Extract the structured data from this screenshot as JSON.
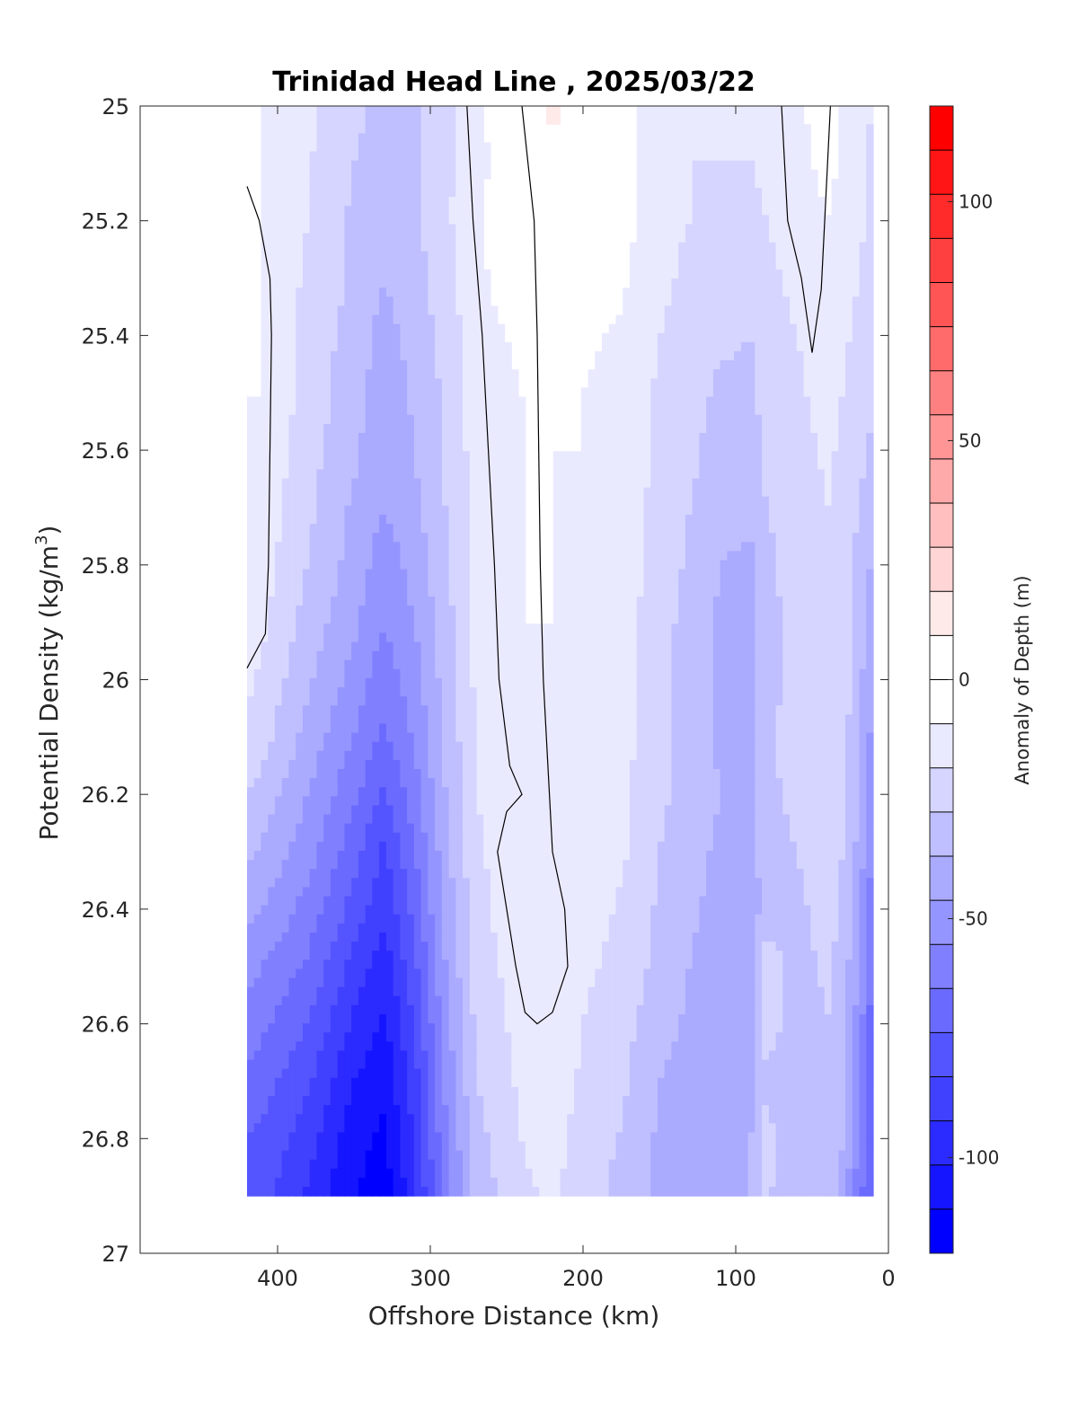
{
  "chart_data": {
    "type": "heatmap",
    "subtype": "filled-contour",
    "title": "Trinidad Head Line , 2025/03/22",
    "xlabel": "Offshore Distance (km)",
    "ylabel_main": "Potential Density (kg/m",
    "ylabel_sup": "3",
    "ylabel_close": ")",
    "xlim": [
      490,
      0
    ],
    "x_reversed": true,
    "ylim": [
      25,
      27
    ],
    "y_reversed": true,
    "x_ticks": [
      400,
      300,
      200,
      100,
      0
    ],
    "x_tick_labels": [
      "400",
      "300",
      "200",
      "100",
      "0"
    ],
    "y_ticks": [
      25,
      25.2,
      25.4,
      25.6,
      25.8,
      26,
      26.2,
      26.4,
      26.6,
      26.8,
      27
    ],
    "y_tick_labels": [
      "25",
      "25.2",
      "25.4",
      "25.6",
      "25.8",
      "26",
      "26.2",
      "26.4",
      "26.6",
      "26.8",
      "27"
    ],
    "colorbar": {
      "label": "Anomaly of Depth (m)",
      "range": [
        -120,
        120
      ],
      "level_step": 10,
      "ticks": [
        100,
        50,
        0,
        -50,
        -100
      ],
      "tick_labels": [
        "100",
        "50",
        "0",
        "-50",
        "-100"
      ],
      "colors": [
        "#0000ff",
        "#1515ff",
        "#2b2bff",
        "#4040ff",
        "#5555ff",
        "#6a6aff",
        "#8080ff",
        "#9595ff",
        "#aaaaff",
        "#bfbfff",
        "#d5d5ff",
        "#eaeaff",
        "#ffffff",
        "#ffffff",
        "#ffeaea",
        "#ffd5d5",
        "#ffbfbf",
        "#ffaaaa",
        "#ff9595",
        "#ff8080",
        "#ff6a6a",
        "#ff5555",
        "#ff4040",
        "#ff2b2b",
        "#ff1515",
        "#ff0000"
      ]
    },
    "stations_km": [
      420,
      410,
      380,
      350,
      330,
      310,
      290,
      270,
      240,
      220,
      200,
      170,
      150,
      130,
      110,
      90,
      80,
      60,
      40,
      30,
      20,
      10
    ],
    "density_levels": [
      25,
      25.1,
      25.2,
      25.3,
      25.4,
      25.5,
      25.6,
      25.7,
      25.8,
      25.9,
      26,
      26.1,
      26.2,
      26.3,
      26.4,
      26.5,
      26.6,
      26.7,
      26.8,
      26.9
    ],
    "anomaly_m": [
      [
        0,
        0,
        -8,
        -18,
        -22,
        -22,
        -12,
        -4,
        14,
        22,
        14,
        2,
        -6,
        -8,
        -10,
        -8,
        -6,
        -2,
        6,
        -2,
        -8,
        -10
      ],
      [
        0,
        0,
        -9,
        -20,
        -24,
        -22,
        -12,
        -4,
        12,
        18,
        12,
        2,
        -6,
        -10,
        -10,
        -10,
        -8,
        -4,
        4,
        -2,
        -8,
        -12
      ],
      [
        0,
        0,
        -10,
        -22,
        -26,
        -22,
        -12,
        -2,
        8,
        16,
        12,
        2,
        -8,
        -10,
        -12,
        -12,
        -10,
        -6,
        0,
        -4,
        -8,
        -12
      ],
      [
        0,
        0,
        -12,
        -22,
        -30,
        -24,
        -14,
        -2,
        6,
        12,
        8,
        0,
        -8,
        -12,
        -14,
        -14,
        -12,
        -8,
        -2,
        -6,
        -10,
        -14
      ],
      [
        0,
        0,
        -14,
        -24,
        -34,
        -26,
        -16,
        -4,
        2,
        6,
        2,
        -2,
        -10,
        -14,
        -18,
        -20,
        -14,
        -10,
        -4,
        -8,
        -12,
        -18
      ],
      [
        0,
        0,
        -14,
        -26,
        -36,
        -28,
        -18,
        -6,
        0,
        2,
        0,
        -4,
        -12,
        -16,
        -22,
        -22,
        -16,
        -12,
        -6,
        -10,
        -14,
        -20
      ],
      [
        0,
        -2,
        -16,
        -28,
        -38,
        -30,
        -18,
        -6,
        0,
        0,
        0,
        -4,
        -12,
        -18,
        -24,
        -24,
        -18,
        -14,
        -8,
        -12,
        -16,
        -22
      ],
      [
        0,
        -4,
        -18,
        -32,
        -40,
        -32,
        -20,
        -8,
        0,
        0,
        -2,
        -6,
        -14,
        -20,
        -26,
        -28,
        -20,
        -16,
        -10,
        -14,
        -20,
        -28
      ],
      [
        -2,
        -6,
        -20,
        -34,
        -46,
        -36,
        -22,
        -8,
        0,
        0,
        -2,
        -6,
        -14,
        -22,
        -30,
        -32,
        -22,
        -16,
        -10,
        -14,
        -22,
        -32
      ],
      [
        -4,
        -8,
        -24,
        -38,
        -50,
        -40,
        -24,
        -8,
        0,
        0,
        -2,
        -8,
        -16,
        -24,
        -32,
        -34,
        -24,
        -16,
        -10,
        -14,
        -24,
        -36
      ],
      [
        -8,
        -12,
        -28,
        -44,
        -56,
        -44,
        -26,
        -8,
        -2,
        0,
        -2,
        -8,
        -16,
        -24,
        -32,
        -34,
        -24,
        -16,
        -10,
        -14,
        -26,
        -40
      ],
      [
        -12,
        -16,
        -34,
        -50,
        -62,
        -48,
        -28,
        -10,
        -2,
        0,
        -4,
        -8,
        -18,
        -24,
        -32,
        -34,
        -22,
        -16,
        -10,
        -16,
        -28,
        -44
      ],
      [
        -20,
        -24,
        -40,
        -58,
        -72,
        -54,
        -30,
        -10,
        -2,
        0,
        -4,
        -10,
        -18,
        -24,
        -30,
        -32,
        -22,
        -18,
        -12,
        -18,
        -30,
        -48
      ],
      [
        -28,
        -32,
        -46,
        -66,
        -82,
        -60,
        -34,
        -12,
        -2,
        0,
        -4,
        -10,
        -20,
        -26,
        -32,
        -34,
        -24,
        -20,
        -14,
        -20,
        -32,
        -52
      ],
      [
        -36,
        -40,
        -54,
        -74,
        -88,
        -66,
        -36,
        -14,
        -2,
        0,
        -6,
        -12,
        -22,
        -28,
        -34,
        -36,
        -26,
        -22,
        -16,
        -22,
        -36,
        -58
      ],
      [
        -46,
        -50,
        -62,
        -84,
        -96,
        -72,
        -40,
        -16,
        -4,
        0,
        -8,
        -14,
        -24,
        -30,
        -36,
        -34,
        -14,
        -24,
        -18,
        -24,
        -40,
        -62
      ],
      [
        -54,
        -58,
        -70,
        -92,
        -102,
        -78,
        -44,
        -18,
        -6,
        -2,
        -10,
        -18,
        -26,
        -32,
        -36,
        -32,
        -14,
        -26,
        -20,
        -26,
        -44,
        -66
      ],
      [
        -62,
        -66,
        -78,
        -100,
        -108,
        -84,
        -48,
        -20,
        -8,
        -4,
        -12,
        -20,
        -30,
        -34,
        -36,
        -32,
        -22,
        -28,
        -22,
        -28,
        -48,
        -70
      ],
      [
        -70,
        -72,
        -86,
        -106,
        -112,
        -88,
        -52,
        -24,
        -10,
        -6,
        -14,
        -22,
        -32,
        -36,
        -36,
        -30,
        -16,
        -30,
        -24,
        -30,
        -52,
        -72
      ],
      [
        -74,
        -76,
        -92,
        -110,
        -116,
        -92,
        -56,
        -26,
        -12,
        -8,
        -16,
        -24,
        -34,
        -38,
        -36,
        -30,
        -18,
        -30,
        -26,
        -32,
        -54,
        -74
      ]
    ],
    "zero_contour": "line",
    "grid": false,
    "colorbar_placement": "right"
  }
}
